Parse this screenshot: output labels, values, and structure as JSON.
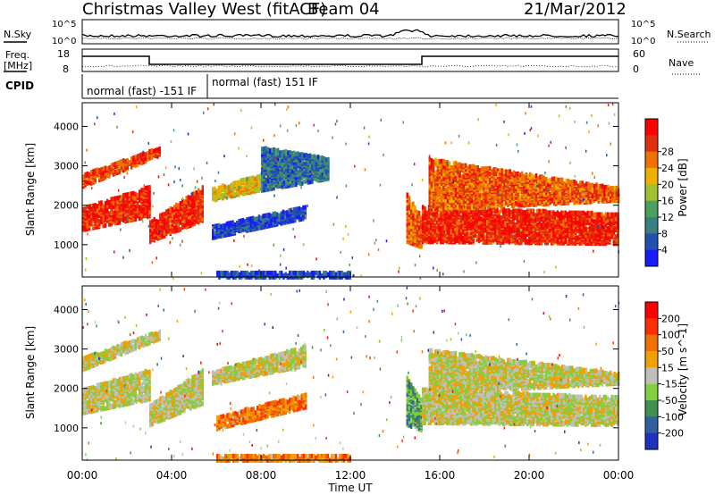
{
  "header": {
    "title": "Christmas Valley West (fitACF)",
    "beam": "Beam 04",
    "date": "21/Mar/2012"
  },
  "status_panels": {
    "nsky_label": "N.Sky",
    "nsearch_label": "N.Search",
    "noise_ticks": [
      "10^5",
      "10^0"
    ],
    "noise_right_ticks": [
      "10^5",
      "10^0"
    ],
    "freq_label": "Freq.",
    "freq_unit": "[MHz]",
    "freq_ticks": [
      "18",
      "8"
    ],
    "nave_label": "Nave",
    "nave_ticks": [
      "60",
      "0"
    ],
    "cpid_label": "CPID",
    "cpid_segments": [
      {
        "label": "normal (fast) -151 IF",
        "start_hour": 0.0,
        "end_hour": 5.6
      },
      {
        "label": "normal (fast) 151 IF",
        "start_hour": 5.6,
        "end_hour": 24.0
      }
    ]
  },
  "chart_data": [
    {
      "type": "heatmap",
      "title": "Power",
      "xlabel": "Time UT",
      "ylabel": "Slant Range [km]",
      "x_ticks": [
        "00:00",
        "04:00",
        "08:00",
        "12:00",
        "16:00",
        "20:00",
        "00:00"
      ],
      "xlim_hours": [
        0,
        24
      ],
      "y_ticks": [
        1000,
        2000,
        3000,
        4000
      ],
      "ylim_km": [
        180,
        4600
      ],
      "colorbar": {
        "label": "Power [dB]",
        "ticks": [
          4,
          8,
          12,
          16,
          20,
          24,
          28
        ],
        "colors": [
          "#1a1aff",
          "#2050b0",
          "#3a8080",
          "#4aa060",
          "#a0c030",
          "#f0b000",
          "#f07000",
          "#e03010",
          "#ff0000"
        ]
      },
      "bands": [
        {
          "t0": 0.0,
          "t1": 3.0,
          "r0_start": 1400,
          "r0_end": 1750,
          "r1_start": 1950,
          "r1_end": 2500,
          "level": 0.9
        },
        {
          "t0": 3.0,
          "t1": 5.4,
          "r0_start": 1100,
          "r0_end": 1650,
          "r1_start": 1600,
          "r1_end": 2500,
          "level": 0.9
        },
        {
          "t0": 0.0,
          "t1": 3.5,
          "r0_start": 2500,
          "r0_end": 3300,
          "r1_start": 2800,
          "r1_end": 3500,
          "level": 0.85
        },
        {
          "t0": 5.8,
          "t1": 9.5,
          "r0_start": 2150,
          "r0_end": 2600,
          "r1_start": 2450,
          "r1_end": 3050,
          "level": 0.6
        },
        {
          "t0": 8.0,
          "t1": 11.0,
          "r0_start": 2400,
          "r0_end": 2700,
          "r1_start": 3500,
          "r1_end": 3200,
          "level": 0.2
        },
        {
          "t0": 5.8,
          "t1": 10.0,
          "r0_start": 1200,
          "r0_end": 1700,
          "r1_start": 1500,
          "r1_end": 2000,
          "level": 0.1
        },
        {
          "t0": 14.5,
          "t1": 15.2,
          "r0_start": 1100,
          "r0_end": 950,
          "r1_start": 2300,
          "r1_end": 1700,
          "level": 0.8
        },
        {
          "t0": 15.2,
          "t1": 24.0,
          "r0_start": 1100,
          "r0_end": 1050,
          "r1_start": 2000,
          "r1_end": 1800,
          "level": 0.92
        },
        {
          "t0": 15.5,
          "t1": 24.0,
          "r0_start": 1900,
          "r0_end": 2150,
          "r1_start": 3200,
          "r1_end": 2450,
          "level": 0.8
        },
        {
          "t0": 6.0,
          "t1": 12.0,
          "r0_start": 200,
          "r0_end": 200,
          "r1_start": 320,
          "r1_end": 320,
          "level": 0.1
        }
      ]
    },
    {
      "type": "heatmap",
      "title": "Velocity",
      "xlabel": "Time UT",
      "ylabel": "Slant Range [km]",
      "x_ticks": [
        "00:00",
        "04:00",
        "08:00",
        "12:00",
        "16:00",
        "20:00",
        "00:00"
      ],
      "xlim_hours": [
        0,
        24
      ],
      "y_ticks": [
        1000,
        2000,
        3000,
        4000
      ],
      "ylim_km": [
        180,
        4600
      ],
      "colorbar": {
        "label": "Velocity [m s^-1]",
        "ticks": [
          200,
          100,
          50,
          15,
          -15,
          -50,
          -100,
          -200
        ],
        "colors": [
          "#2030c0",
          "#3060a0",
          "#409050",
          "#80d040",
          "#c0c0b8",
          "#f0a000",
          "#f07000",
          "#ff3000",
          "#ff0000"
        ]
      },
      "bands": [
        {
          "t0": 0.0,
          "t1": 3.0,
          "r0_start": 1400,
          "r0_end": 1750,
          "r1_start": 2000,
          "r1_end": 2500,
          "level": 0.5
        },
        {
          "t0": 3.0,
          "t1": 5.4,
          "r0_start": 1100,
          "r0_end": 1650,
          "r1_start": 1600,
          "r1_end": 2500,
          "level": 0.5
        },
        {
          "t0": 0.0,
          "t1": 3.5,
          "r0_start": 2500,
          "r0_end": 3300,
          "r1_start": 2800,
          "r1_end": 3500,
          "level": 0.5
        },
        {
          "t0": 5.8,
          "t1": 10.0,
          "r0_start": 2150,
          "r0_end": 2600,
          "r1_start": 2450,
          "r1_end": 3100,
          "level": 0.5
        },
        {
          "t0": 6.0,
          "t1": 10.0,
          "r0_start": 1000,
          "r0_end": 1550,
          "r1_start": 1300,
          "r1_end": 1900,
          "level": 0.72
        },
        {
          "t0": 14.5,
          "t1": 15.2,
          "r0_start": 1100,
          "r0_end": 950,
          "r1_start": 2300,
          "r1_end": 1700,
          "level": 0.3
        },
        {
          "t0": 15.2,
          "t1": 24.0,
          "r0_start": 1150,
          "r0_end": 1100,
          "r1_start": 2000,
          "r1_end": 1800,
          "level": 0.5
        },
        {
          "t0": 15.5,
          "t1": 24.0,
          "r0_start": 1900,
          "r0_end": 2150,
          "r1_start": 3000,
          "r1_end": 2400,
          "level": 0.5
        },
        {
          "t0": 6.0,
          "t1": 12.0,
          "r0_start": 200,
          "r0_end": 200,
          "r1_start": 340,
          "r1_end": 340,
          "level": 0.7
        }
      ]
    }
  ]
}
